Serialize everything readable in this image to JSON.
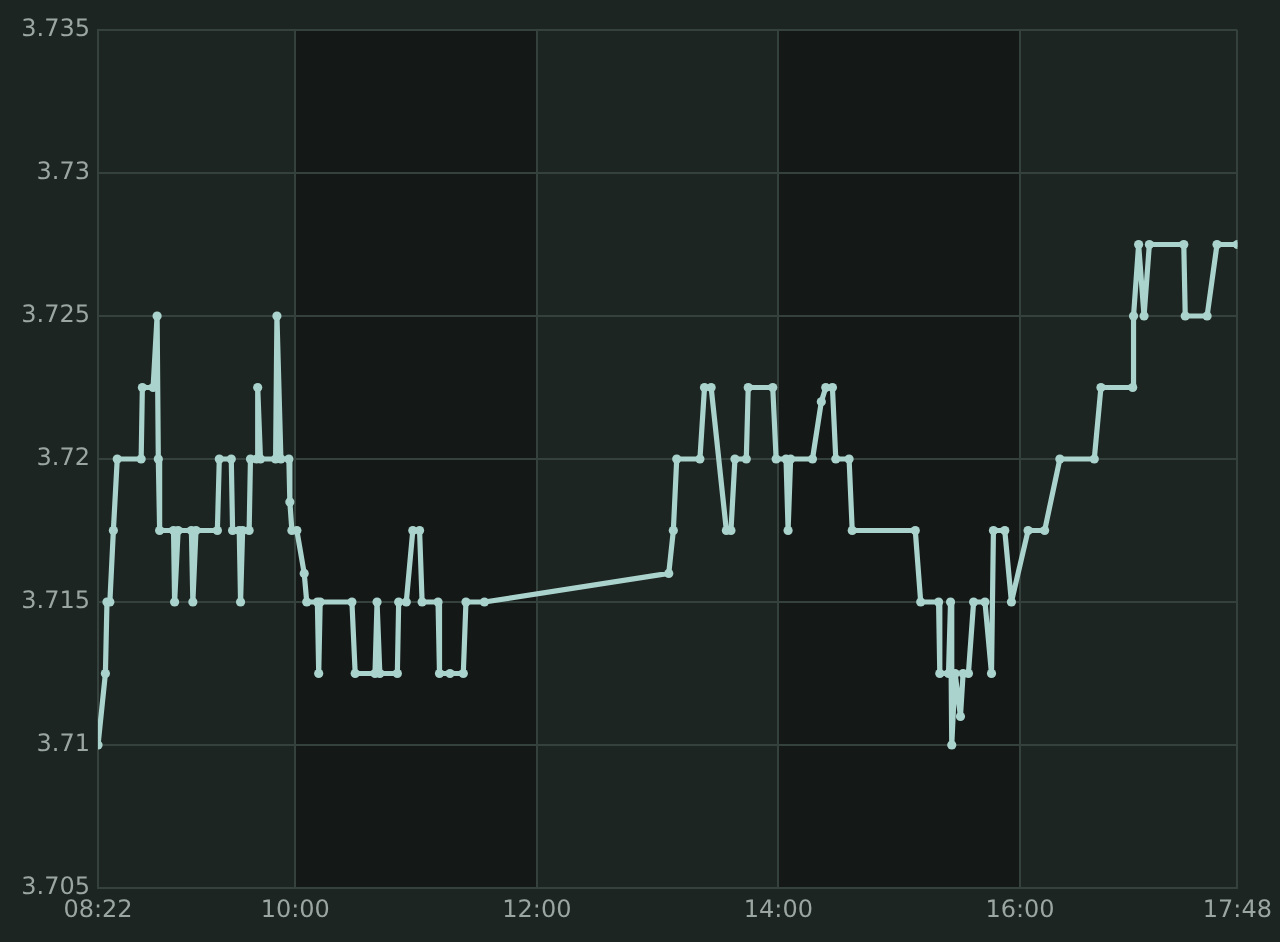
{
  "chart_data": {
    "type": "line",
    "x": [
      8.367,
      8.428,
      8.441,
      8.465,
      8.494,
      8.526,
      8.724,
      8.734,
      8.823,
      8.856,
      8.866,
      8.877,
      8.992,
      9.001,
      9.03,
      9.14,
      9.152,
      9.178,
      9.355,
      9.371,
      9.47,
      9.481,
      9.536,
      9.547,
      9.564,
      9.618,
      9.629,
      9.679,
      9.689,
      9.712,
      9.837,
      9.848,
      9.881,
      9.947,
      9.955,
      9.972,
      10.013,
      10.074,
      10.095,
      10.183,
      10.194,
      10.206,
      10.469,
      10.496,
      10.66,
      10.677,
      10.7,
      10.845,
      10.856,
      10.919,
      10.973,
      11.029,
      11.05,
      11.182,
      11.194,
      11.281,
      11.391,
      11.413,
      11.566,
      13.092,
      13.13,
      13.158,
      13.35,
      13.388,
      13.443,
      13.569,
      13.607,
      13.64,
      13.734,
      13.75,
      13.953,
      13.981,
      14.063,
      14.08,
      14.101,
      14.282,
      14.355,
      14.392,
      14.447,
      14.475,
      14.585,
      14.611,
      15.133,
      15.178,
      15.326,
      15.336,
      15.408,
      15.425,
      15.435,
      15.463,
      15.507,
      15.529,
      15.573,
      15.616,
      15.71,
      15.764,
      15.78,
      15.874,
      15.929,
      16.067,
      16.204,
      16.33,
      16.615,
      16.67,
      16.933,
      16.94,
      16.982,
      17.027,
      17.071,
      17.356,
      17.368,
      17.549,
      17.631,
      17.8
    ],
    "series": [
      {
        "color": "#a9d3cc",
        "values": [
          3.71,
          3.7125,
          3.715,
          3.715,
          3.7175,
          3.72,
          3.72,
          3.7225,
          3.7225,
          3.725,
          3.72,
          3.7175,
          3.7175,
          3.715,
          3.7175,
          3.7175,
          3.715,
          3.7175,
          3.7175,
          3.72,
          3.72,
          3.7175,
          3.7175,
          3.715,
          3.7175,
          3.7175,
          3.72,
          3.72,
          3.7225,
          3.72,
          3.72,
          3.725,
          3.72,
          3.72,
          3.7185,
          3.7175,
          3.7175,
          3.716,
          3.715,
          3.715,
          3.7125,
          3.715,
          3.715,
          3.7125,
          3.7125,
          3.715,
          3.7125,
          3.7125,
          3.715,
          3.715,
          3.7175,
          3.7175,
          3.715,
          3.715,
          3.7125,
          3.7125,
          3.7125,
          3.715,
          3.715,
          3.716,
          3.7175,
          3.72,
          3.72,
          3.7225,
          3.7225,
          3.7175,
          3.7175,
          3.72,
          3.72,
          3.7225,
          3.7225,
          3.72,
          3.72,
          3.7175,
          3.72,
          3.72,
          3.722,
          3.7225,
          3.7225,
          3.72,
          3.72,
          3.7175,
          3.7175,
          3.715,
          3.715,
          3.7125,
          3.7125,
          3.715,
          3.71,
          3.7125,
          3.711,
          3.7125,
          3.7125,
          3.715,
          3.715,
          3.7125,
          3.7175,
          3.7175,
          3.715,
          3.7175,
          3.7175,
          3.72,
          3.72,
          3.7225,
          3.7225,
          3.725,
          3.7275,
          3.725,
          3.7275,
          3.7275,
          3.725,
          3.725,
          3.7275,
          3.7275
        ]
      }
    ],
    "xlim": [
      8.3667,
      17.8
    ],
    "xticks": [
      {
        "value": 8.3667,
        "label": "08:22"
      },
      {
        "value": 10,
        "label": "10:00"
      },
      {
        "value": 12,
        "label": "12:00"
      },
      {
        "value": 14,
        "label": "14:00"
      },
      {
        "value": 16,
        "label": "16:00"
      },
      {
        "value": 17.8,
        "label": "17:48"
      }
    ],
    "ylim": [
      3.705,
      3.735
    ],
    "yticks": [
      3.705,
      3.71,
      3.715,
      3.72,
      3.725,
      3.73,
      3.735
    ],
    "bands": [
      {
        "axis": "x",
        "from": 10,
        "to": 12,
        "color": "#141817"
      },
      {
        "axis": "x",
        "from": 14,
        "to": 16,
        "color": "#141817"
      }
    ],
    "grid": true,
    "marker": "circle"
  }
}
